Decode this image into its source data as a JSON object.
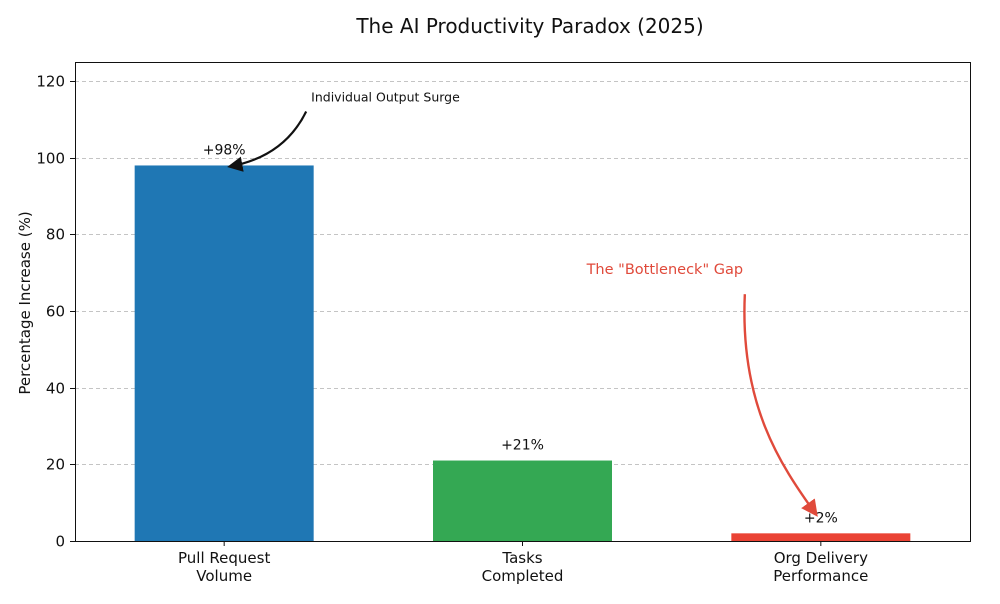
{
  "chart_data": {
    "type": "bar",
    "title": "The AI Productivity Paradox (2025)",
    "xlabel": "",
    "ylabel": "Percentage Increase (%)",
    "ylim": [
      0,
      125
    ],
    "yticks": [
      0,
      20,
      40,
      60,
      80,
      100,
      120
    ],
    "grid": "y-dashed",
    "categories": [
      [
        "Pull Request",
        "Volume"
      ],
      [
        "Tasks",
        "Completed"
      ],
      [
        "Org Delivery",
        "Performance"
      ]
    ],
    "values": [
      98,
      21,
      2
    ],
    "value_labels": [
      "+98%",
      "+21%",
      "+2%"
    ],
    "bar_colors": [
      "#1f77b4",
      "#34a853",
      "#ea4335"
    ],
    "annotations": [
      {
        "text": "Individual Output Surge",
        "target_category": 0,
        "target_value": 98,
        "color": "#111111"
      },
      {
        "text": "The \"Bottleneck\" Gap",
        "target_category": 2,
        "target_value": 7,
        "color": "#e04a3b"
      }
    ]
  }
}
